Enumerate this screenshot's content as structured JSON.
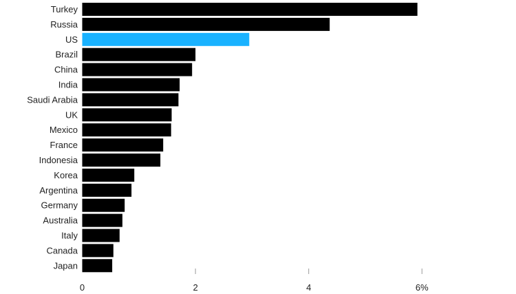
{
  "chart_data": {
    "type": "bar",
    "orientation": "horizontal",
    "categories": [
      "Turkey",
      "Russia",
      "US",
      "Brazil",
      "China",
      "India",
      "Saudi Arabia",
      "UK",
      "Mexico",
      "France",
      "Indonesia",
      "Korea",
      "Argentina",
      "Germany",
      "Australia",
      "Italy",
      "Canada",
      "Japan"
    ],
    "values": [
      5.92,
      4.37,
      2.95,
      2.0,
      1.94,
      1.72,
      1.7,
      1.58,
      1.57,
      1.43,
      1.38,
      0.92,
      0.87,
      0.75,
      0.71,
      0.66,
      0.55,
      0.53
    ],
    "xlim": [
      0,
      7
    ],
    "xticks": [
      0,
      2,
      4,
      6
    ],
    "xtick_labels": [
      "0",
      "2",
      "4",
      "6%"
    ],
    "colors": {
      "default": "#000000",
      "highlight": "#19b2ff"
    },
    "highlight": "US"
  }
}
